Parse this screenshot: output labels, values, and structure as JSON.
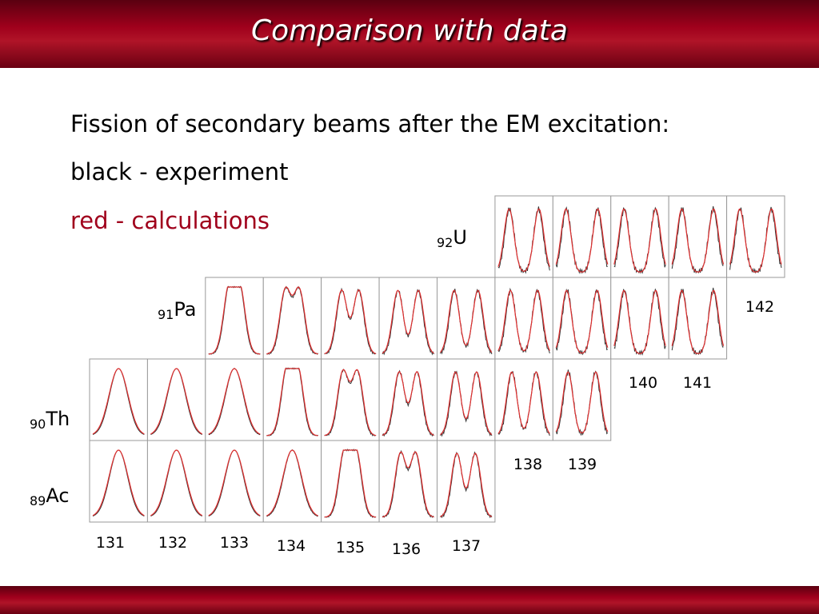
{
  "header": {
    "title": "Comparison with data"
  },
  "text": {
    "lines": [
      "Fission of secondary beams after the EM excitation:",
      "black - experiment",
      "red - calculations"
    ]
  },
  "elements": [
    {
      "z": "92",
      "symbol": "U"
    },
    {
      "z": "91",
      "symbol": "Pa"
    },
    {
      "z": "90",
      "symbol": "Th"
    },
    {
      "z": "89",
      "symbol": "Ac"
    }
  ],
  "masses": [
    "131",
    "132",
    "133",
    "134",
    "135",
    "136",
    "137",
    "138",
    "139",
    "140",
    "141",
    "142"
  ]
}
